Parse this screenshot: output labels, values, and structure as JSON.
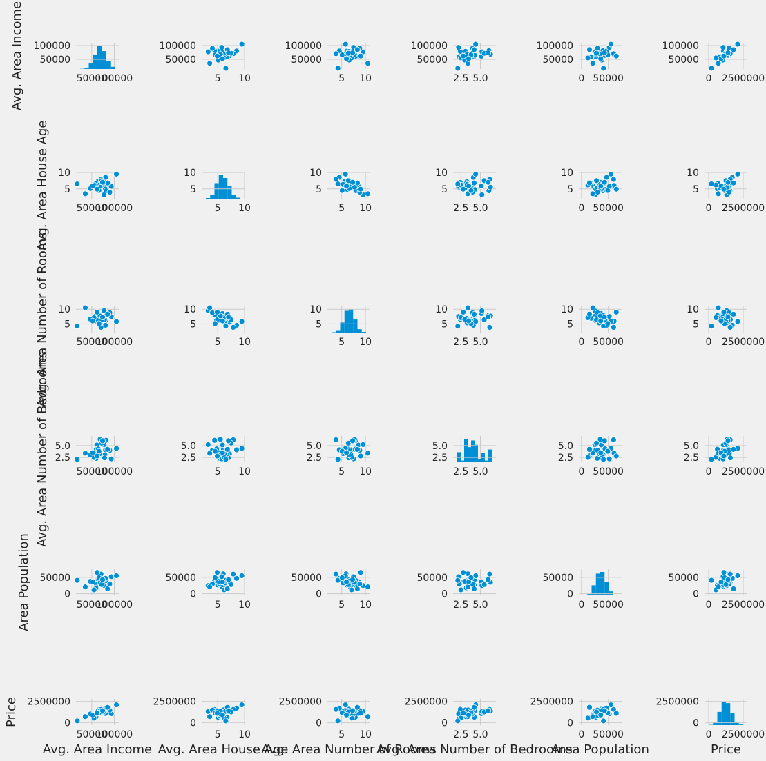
{
  "chart_data": {
    "type": "scatter",
    "kind": "pairplot",
    "variables": [
      "Avg. Area Income",
      "Avg. Area House Age",
      "Avg. Area Number of Rooms",
      "Avg. Area Number of Bedrooms",
      "Area Population",
      "Price"
    ],
    "diagonal": "histogram",
    "grid": true,
    "colors": {
      "background": "#f0f0f0",
      "marker": "#008fd5",
      "marker_edge": "#ffffff",
      "grid": "#cbcbcb"
    },
    "axes": [
      {
        "name": "Avg. Area Income",
        "range": [
          15000,
          110000
        ],
        "ticks": [
          50000,
          100000
        ],
        "tick_labels": [
          "50000",
          "100000"
        ],
        "samples": [
          79545,
          79249,
          61287,
          63345,
          59982,
          80176,
          64698,
          78395,
          59928,
          81885,
          80528,
          59299,
          93318,
          68212,
          64353,
          77380,
          70512,
          55000,
          47000,
          90000,
          104703,
          35608,
          17797,
          68500,
          72000,
          66000,
          85000,
          52000,
          74000,
          62000
        ],
        "hist": [
          1,
          3,
          25,
          65,
          105,
          80,
          35,
          10
        ]
      },
      {
        "name": "Avg. Area House Age",
        "range": [
          2,
          10
        ],
        "ticks": [
          5,
          10
        ],
        "tick_labels": [
          "5",
          "10"
        ],
        "samples": [
          5.68,
          6.0,
          5.87,
          7.19,
          5.04,
          4.99,
          6.03,
          6.99,
          5.36,
          4.42,
          8.52,
          6.68,
          5.75,
          6.34,
          4.79,
          3.2,
          7.9,
          6.2,
          5.1,
          4.0,
          9.5,
          3.5,
          6.5,
          5.5,
          7.5,
          4.5,
          6.8,
          5.9,
          7.0,
          4.9
        ],
        "hist": [
          2,
          12,
          45,
          68,
          60,
          38,
          12,
          3
        ]
      },
      {
        "name": "Avg. Area Number of Rooms",
        "range": [
          2,
          11
        ],
        "ticks": [
          5,
          10
        ],
        "tick_labels": [
          "5",
          "10"
        ],
        "samples": [
          7.01,
          6.73,
          8.51,
          5.59,
          7.84,
          6.1,
          5.92,
          6.5,
          7.2,
          8.0,
          4.5,
          6.9,
          7.5,
          5.3,
          6.2,
          9.5,
          3.8,
          7.1,
          6.6,
          8.8,
          5.8,
          10.5,
          4.2,
          7.7,
          6.4,
          5.1,
          8.3,
          6.0,
          7.3,
          9.0
        ],
        "hist": [
          1,
          5,
          30,
          65,
          70,
          40,
          10,
          2
        ]
      },
      {
        "name": "Avg. Area Number of Bedrooms",
        "range": [
          1.5,
          7
        ],
        "ticks": [
          2.5,
          5.0
        ],
        "tick_labels": [
          "2.5",
          "5.0"
        ],
        "samples": [
          4.09,
          3.09,
          5.13,
          3.26,
          4.23,
          4.04,
          3.41,
          2.42,
          2.3,
          6.1,
          4.1,
          3.2,
          2.2,
          3.3,
          4.3,
          5.2,
          6.2,
          2.5,
          3.0,
          4.0,
          4.4,
          3.4,
          2.1,
          6.3,
          5.5,
          3.8,
          4.2,
          3.5,
          6.0,
          2.8
        ],
        "hist": [
          30,
          5,
          70,
          45,
          65,
          52,
          10,
          28,
          5,
          38
        ]
      },
      {
        "name": "Area Population",
        "range": [
          -5000,
          75000
        ],
        "ticks": [
          0,
          50000
        ],
        "tick_labels": [
          "0",
          "50000"
        ],
        "samples": [
          23087,
          40173,
          36882,
          34310,
          26354,
          26748,
          60828,
          36516,
          29387,
          40149,
          47000,
          18000,
          52000,
          33000,
          44000,
          25000,
          60000,
          12000,
          38000,
          30000,
          55000,
          21000,
          41000,
          35000,
          28000,
          49000,
          15000,
          36000,
          43000,
          65000
        ],
        "hist": [
          1,
          5,
          30,
          65,
          70,
          40,
          12,
          2
        ]
      },
      {
        "name": "Price",
        "range": [
          -300000,
          2800000
        ],
        "ticks": [
          0,
          2500000
        ],
        "tick_labels": [
          "0",
          "2500000"
        ],
        "samples": [
          1059034,
          1505891,
          1058988,
          1260617,
          630943,
          1068138,
          1502056,
          1573937,
          798870,
          1545155,
          1707046,
          663733,
          1042815,
          1291332,
          1402818,
          1306675,
          1556787,
          528485,
          1019426,
          1475627,
          2100000,
          700000,
          200000,
          1350000,
          1250000,
          1150000,
          1800000,
          900000,
          1400000,
          1100000
        ],
        "hist": [
          1,
          10,
          45,
          80,
          75,
          40,
          10,
          2
        ]
      }
    ]
  }
}
